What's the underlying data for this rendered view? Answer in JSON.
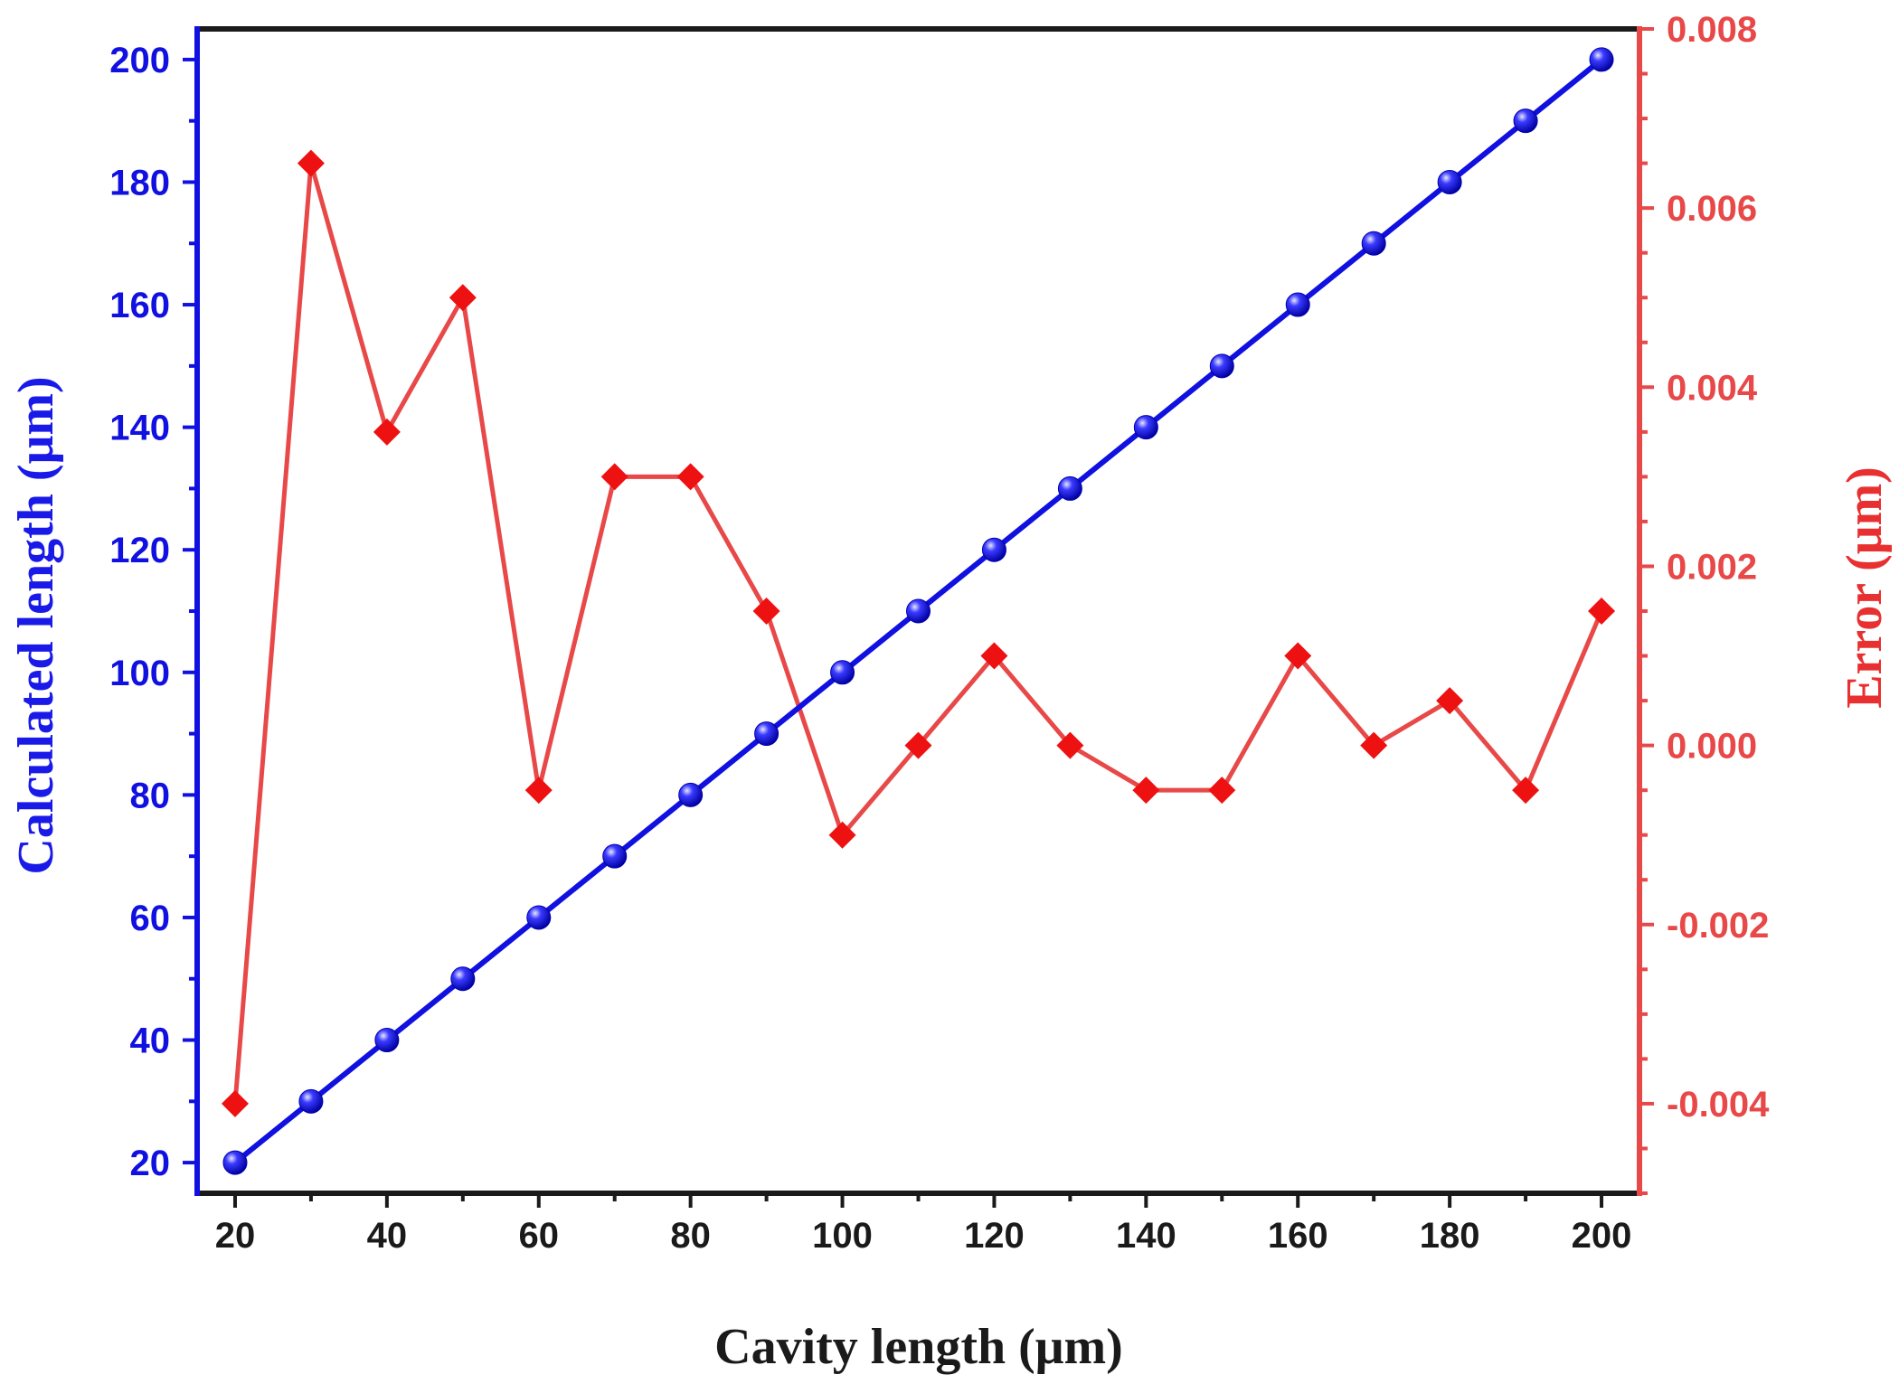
{
  "chart_data": {
    "type": "line",
    "title": "",
    "xlabel": "Cavity length (μm)",
    "ylabel_left": "Calculated length (μm)",
    "ylabel_right": "Error (μm)",
    "x": [
      20,
      30,
      40,
      50,
      60,
      70,
      80,
      90,
      100,
      110,
      120,
      130,
      140,
      150,
      160,
      170,
      180,
      190,
      200
    ],
    "xlim": [
      15,
      205
    ],
    "ylim_left": [
      15,
      205
    ],
    "ylim_right": [
      -0.005,
      0.008
    ],
    "x_ticks": [
      "20",
      "40",
      "60",
      "80",
      "100",
      "120",
      "140",
      "160",
      "180",
      "200"
    ],
    "y_ticks_left": [
      "20",
      "40",
      "60",
      "80",
      "100",
      "120",
      "140",
      "160",
      "180",
      "200"
    ],
    "y_ticks_right": [
      "-0.004",
      "-0.002",
      "0.000",
      "0.002",
      "0.004",
      "0.006",
      "0.008"
    ],
    "grid": false,
    "series": [
      {
        "name": "Calculated length",
        "axis": "left",
        "color": "#1010e0",
        "marker": "circle",
        "values": [
          20,
          30,
          40,
          50,
          60,
          70,
          80,
          90,
          100,
          110,
          120,
          130,
          140,
          150,
          160,
          170,
          180,
          190,
          200
        ]
      },
      {
        "name": "Error",
        "axis": "right",
        "color": "#e84848",
        "marker_color": "#ee1111",
        "marker": "diamond",
        "values": [
          -0.004,
          0.0065,
          0.0035,
          0.005,
          -0.0005,
          0.003,
          0.003,
          0.0015,
          -0.001,
          0.0,
          0.001,
          0.0,
          -0.0005,
          -0.0005,
          0.001,
          0.0,
          0.0005,
          -0.0005,
          0.0015
        ]
      }
    ]
  }
}
